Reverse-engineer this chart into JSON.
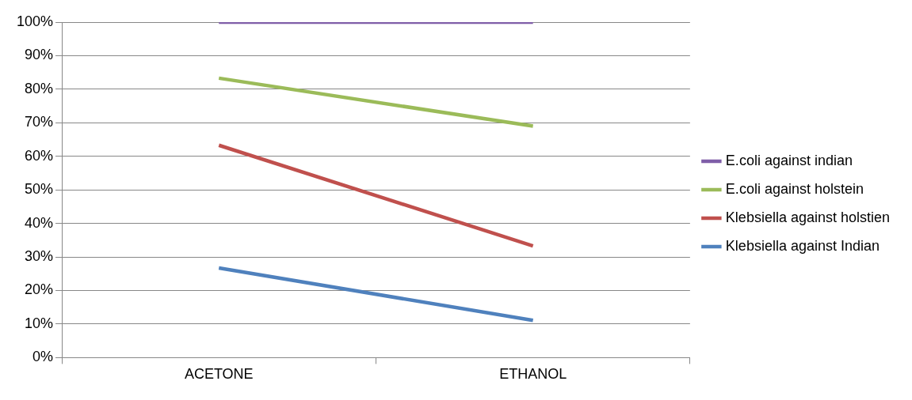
{
  "chart_data": {
    "type": "line",
    "categories": [
      "ACETONE",
      "ETHANOL"
    ],
    "series": [
      {
        "name": "E.coli against indian",
        "color": "#7f5ea8",
        "values": [
          100,
          100
        ]
      },
      {
        "name": "E.coli against holstein",
        "color": "#9bbb59",
        "values": [
          83.3,
          69
        ]
      },
      {
        "name": "Klebsiella against holstien",
        "color": "#c0504d",
        "values": [
          63.3,
          33.3
        ]
      },
      {
        "name": "Klebsiella against Indian",
        "color": "#4f81bd",
        "values": [
          26.7,
          11.1
        ]
      }
    ],
    "ylim": [
      0,
      100
    ],
    "yticks": [
      {
        "value": 0,
        "label": "0%"
      },
      {
        "value": 10,
        "label": "10%"
      },
      {
        "value": 20,
        "label": "20%"
      },
      {
        "value": 30,
        "label": "30%"
      },
      {
        "value": 40,
        "label": "40%"
      },
      {
        "value": 50,
        "label": "50%"
      },
      {
        "value": 60,
        "label": "60%"
      },
      {
        "value": 70,
        "label": "70%"
      },
      {
        "value": 80,
        "label": "80%"
      },
      {
        "value": 90,
        "label": "90%"
      },
      {
        "value": 100,
        "label": "100%"
      }
    ],
    "grid": "y",
    "legend": "right",
    "marker": "none",
    "line_style": "solid"
  }
}
